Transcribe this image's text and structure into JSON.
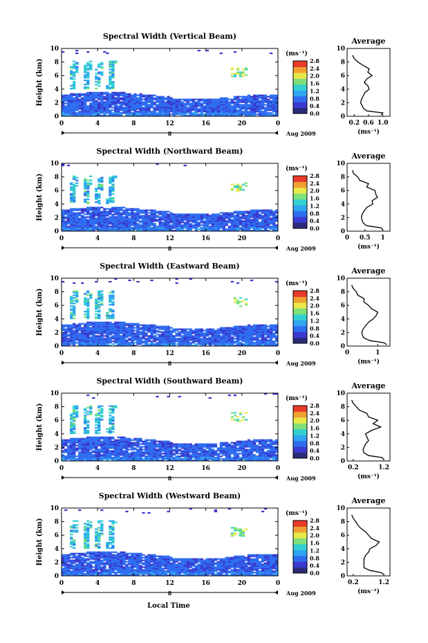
{
  "colors": {
    "colorbar": [
      "#2b2b7a",
      "#3a3ad0",
      "#2f6df0",
      "#2fa6f0",
      "#34d0d0",
      "#7fe07a",
      "#e8e84a",
      "#f0a030",
      "#e83a2a"
    ]
  },
  "chart_data": {
    "type": "heatmap",
    "xlabel": "Local Time",
    "x_ticks": [
      "0",
      "4",
      "8",
      "12",
      "16",
      "20",
      "0"
    ],
    "date_left": "8",
    "date_right": "Aug 2009",
    "x_range": [
      0,
      24
    ],
    "y_ticks": [
      "0",
      "2",
      "4",
      "6",
      "8",
      "10"
    ],
    "ylabel": "Height (km)",
    "y_range": [
      0,
      10
    ],
    "colorbar_label": "(ms⁻¹)",
    "colorbar_ticks": [
      "2.8",
      "2.4",
      "2.0",
      "1.6",
      "1.2",
      "0.8",
      "0.4",
      "0.0"
    ],
    "colorbar_range": [
      0,
      2.8
    ],
    "avg_title": "Average",
    "avg_ylabel_ticks": [
      "0",
      "2",
      "4",
      "6",
      "8",
      "10"
    ],
    "avg_xlabel": "(ms⁻¹)",
    "panels": [
      {
        "title": "Spectral Width (Vertical Beam)",
        "avg_xticks": [
          "0.2",
          "0.6",
          "1.0"
        ],
        "avg_xrange": [
          0.0,
          1.2
        ],
        "avg_profile": {
          "height": [
            0.2,
            0.5,
            0.8,
            1.2,
            1.6,
            2.0,
            2.5,
            3.0,
            3.5,
            4.0,
            4.5,
            5.0,
            5.5,
            6.0,
            6.5,
            7.0,
            7.5,
            8.0,
            8.5,
            9.0
          ],
          "value": [
            0.95,
            1.0,
            0.55,
            0.45,
            0.42,
            0.38,
            0.4,
            0.45,
            0.5,
            0.62,
            0.58,
            0.48,
            0.55,
            0.7,
            0.58,
            0.62,
            0.45,
            0.3,
            0.2,
            0.15
          ]
        }
      },
      {
        "title": "Spectral Width (Northward Beam)",
        "avg_xticks": [
          "0",
          "0.5",
          "1"
        ],
        "avg_xrange": [
          0.0,
          1.2
        ],
        "avg_profile": {
          "height": [
            0.2,
            0.5,
            0.8,
            1.2,
            1.6,
            2.0,
            2.5,
            3.0,
            3.5,
            4.0,
            4.5,
            5.0,
            5.5,
            6.0,
            6.5,
            7.0,
            7.5,
            8.0,
            8.5,
            9.0
          ],
          "value": [
            1.0,
            0.95,
            0.55,
            0.45,
            0.42,
            0.4,
            0.42,
            0.48,
            0.55,
            0.72,
            0.7,
            0.85,
            0.8,
            0.78,
            0.55,
            0.6,
            0.35,
            0.3,
            0.18,
            0.15
          ]
        }
      },
      {
        "title": "Spectral Width (Eastward Beam)",
        "avg_xticks": [
          "0",
          "1"
        ],
        "avg_xrange": [
          0.0,
          1.4
        ],
        "avg_profile": {
          "height": [
            0.2,
            0.5,
            0.8,
            1.2,
            1.6,
            2.0,
            2.5,
            3.0,
            3.5,
            4.0,
            4.5,
            5.0,
            5.5,
            6.0,
            6.5,
            7.0,
            7.5,
            8.0,
            8.5,
            9.0
          ],
          "value": [
            1.3,
            1.2,
            0.75,
            0.55,
            0.5,
            0.48,
            0.52,
            0.6,
            0.7,
            0.85,
            0.95,
            1.0,
            0.8,
            0.7,
            0.55,
            0.55,
            0.35,
            0.3,
            0.2,
            0.15
          ]
        }
      },
      {
        "title": "Spectral Width (Southward Beam)",
        "avg_xticks": [
          "0.2",
          "1.2"
        ],
        "avg_xrange": [
          0.0,
          1.4
        ],
        "avg_profile": {
          "height": [
            0.2,
            0.5,
            0.8,
            1.2,
            1.6,
            2.0,
            2.5,
            3.0,
            3.5,
            4.0,
            4.5,
            5.0,
            5.5,
            6.0,
            6.5,
            7.0,
            7.5,
            8.0,
            8.5,
            9.0
          ],
          "value": [
            1.2,
            1.15,
            0.7,
            0.55,
            0.52,
            0.55,
            0.6,
            0.7,
            0.65,
            0.6,
            0.8,
            1.1,
            0.85,
            1.0,
            0.7,
            0.65,
            0.4,
            0.3,
            0.2,
            0.15
          ]
        }
      },
      {
        "title": "Spectral Width (Westward Beam)",
        "avg_xticks": [
          "0.2",
          "1.2"
        ],
        "avg_xrange": [
          0.0,
          1.4
        ],
        "avg_profile": {
          "height": [
            0.2,
            0.5,
            0.8,
            1.2,
            1.6,
            2.0,
            2.5,
            3.0,
            3.5,
            4.0,
            4.5,
            5.0,
            5.5,
            6.0,
            6.5,
            7.0,
            7.5,
            8.0,
            8.5,
            9.0
          ],
          "value": [
            1.2,
            1.1,
            0.75,
            0.55,
            0.55,
            0.55,
            0.55,
            0.6,
            0.7,
            0.75,
            0.95,
            1.05,
            0.8,
            0.7,
            0.6,
            0.45,
            0.35,
            0.28,
            0.2,
            0.15
          ]
        }
      }
    ]
  }
}
